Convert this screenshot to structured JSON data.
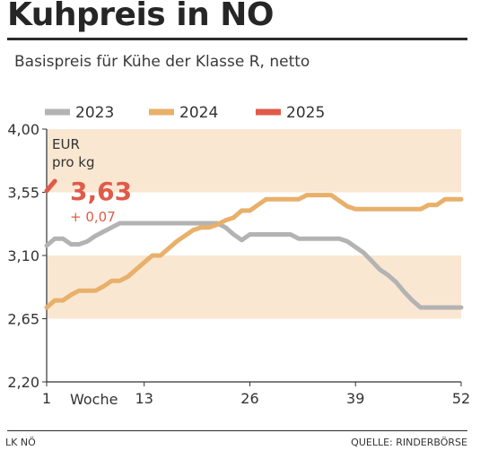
{
  "header": {
    "title": "Kuhpreis in NÖ",
    "subtitle": "Basispreis für Kühe der Klasse R, netto"
  },
  "footer": {
    "left": "LK NÖ",
    "right": "QUELLE: RINDERBÖRSE"
  },
  "chart_data": {
    "type": "line",
    "title": "Kuhpreis in NÖ",
    "subtitle": "Basispreis für Kühe der Klasse R, netto",
    "unit": [
      "EUR",
      "pro kg"
    ],
    "xlabel": "Woche",
    "ylim": [
      2.2,
      4.0
    ],
    "xlim": [
      1,
      52
    ],
    "y_ticks": [
      "4,00",
      "3,55",
      "3,10",
      "2,65",
      "2,20"
    ],
    "y_tick_values": [
      4.0,
      3.55,
      3.1,
      2.65,
      2.2
    ],
    "x_ticks": [
      "1",
      "13",
      "26",
      "39",
      "52"
    ],
    "x_tick_values": [
      1,
      13,
      26,
      39,
      52
    ],
    "legend_position": "top",
    "colors": {
      "2023": "#b3b3b3",
      "2024": "#e8b06a",
      "2025": "#e05a4a",
      "band": "#fae7d2"
    },
    "highlight": {
      "value": "3,63",
      "change": "+ 0,07"
    },
    "series": [
      {
        "name": "2023",
        "x": [
          1,
          2,
          3,
          4,
          5,
          6,
          7,
          8,
          9,
          10,
          11,
          12,
          13,
          14,
          15,
          16,
          17,
          18,
          19,
          20,
          21,
          22,
          23,
          24,
          25,
          26,
          27,
          28,
          29,
          30,
          31,
          32,
          33,
          34,
          35,
          36,
          37,
          38,
          39,
          40,
          41,
          42,
          43,
          44,
          45,
          46,
          47,
          48,
          49,
          50,
          51,
          52
        ],
        "values": [
          3.17,
          3.22,
          3.22,
          3.18,
          3.18,
          3.2,
          3.24,
          3.27,
          3.3,
          3.33,
          3.33,
          3.33,
          3.33,
          3.33,
          3.33,
          3.33,
          3.33,
          3.33,
          3.33,
          3.33,
          3.33,
          3.33,
          3.3,
          3.25,
          3.21,
          3.25,
          3.25,
          3.25,
          3.25,
          3.25,
          3.25,
          3.22,
          3.22,
          3.22,
          3.22,
          3.22,
          3.22,
          3.2,
          3.16,
          3.12,
          3.06,
          3.0,
          2.96,
          2.91,
          2.84,
          2.78,
          2.73,
          2.73,
          2.73,
          2.73,
          2.73,
          2.73
        ]
      },
      {
        "name": "2024",
        "x": [
          1,
          2,
          3,
          4,
          5,
          6,
          7,
          8,
          9,
          10,
          11,
          12,
          13,
          14,
          15,
          16,
          17,
          18,
          19,
          20,
          21,
          22,
          23,
          24,
          25,
          26,
          27,
          28,
          29,
          30,
          31,
          32,
          33,
          34,
          35,
          36,
          37,
          38,
          39,
          40,
          41,
          42,
          43,
          44,
          45,
          46,
          47,
          48,
          49,
          50,
          51,
          52
        ],
        "values": [
          2.73,
          2.78,
          2.78,
          2.82,
          2.85,
          2.85,
          2.85,
          2.88,
          2.92,
          2.92,
          2.95,
          3.0,
          3.05,
          3.1,
          3.1,
          3.15,
          3.2,
          3.24,
          3.28,
          3.3,
          3.3,
          3.32,
          3.35,
          3.37,
          3.42,
          3.42,
          3.46,
          3.5,
          3.5,
          3.5,
          3.5,
          3.5,
          3.53,
          3.53,
          3.53,
          3.53,
          3.49,
          3.45,
          3.43,
          3.43,
          3.43,
          3.43,
          3.43,
          3.43,
          3.43,
          3.43,
          3.43,
          3.46,
          3.46,
          3.5,
          3.5,
          3.5
        ]
      },
      {
        "name": "2025",
        "x": [
          1,
          2
        ],
        "values": [
          3.56,
          3.63
        ]
      }
    ]
  }
}
